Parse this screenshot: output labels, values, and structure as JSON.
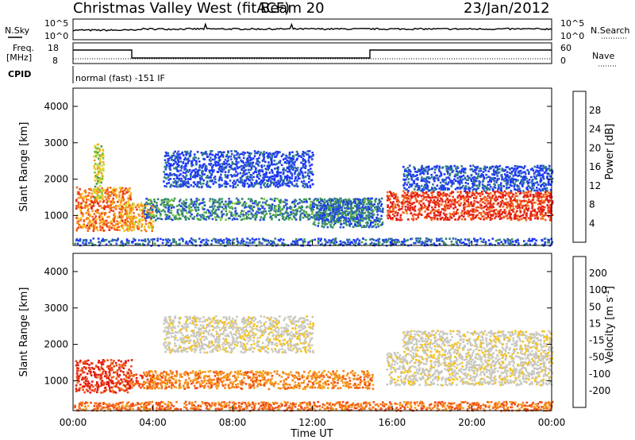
{
  "header": {
    "station": "Christmas Valley West (fitACF)",
    "beam": "Beam 20",
    "date": "23/Jan/2012"
  },
  "params": {
    "nsky_label": "N.Sky",
    "nsearch_label": "N.Search",
    "nsky_ticks": [
      "10^5",
      "10^0"
    ],
    "nsearch_ticks": [
      "10^5",
      "10^0"
    ],
    "freq_label_1": "Freq.",
    "freq_label_2": "[MHz]",
    "freq_ticks": [
      "18",
      "8"
    ],
    "nave_label": "Nave",
    "nave_ticks": [
      "60",
      "0"
    ],
    "cpid_label": "CPID",
    "cpid_text": "normal (fast) -151 IF"
  },
  "chart_data": [
    {
      "type": "heatmap",
      "panel": "power",
      "ylabel": "Slant Range [km]",
      "xlabel": "",
      "ylim": [
        180,
        4500
      ],
      "yticks": [
        1000,
        2000,
        3000,
        4000
      ],
      "colorbar": {
        "title": "Power [dB]",
        "range": [
          0,
          32
        ],
        "ticks": [
          4,
          8,
          12,
          16,
          20,
          24,
          28
        ],
        "colors": [
          "#1a34ff",
          "#2a4fd8",
          "#2e7a86",
          "#3f9a4e",
          "#72c23a",
          "#c8d93a",
          "#f4c21a",
          "#f5961b",
          "#f36a1a",
          "#ee3b17",
          "#e21b12"
        ]
      },
      "scatter_bands": [
        {
          "t0": 0.1,
          "t1": 2.9,
          "r0": 600,
          "r1": 1800,
          "level": 0.75
        },
        {
          "t0": 1.0,
          "t1": 1.5,
          "r0": 1500,
          "r1": 3000,
          "level": 0.5
        },
        {
          "t0": 2.6,
          "t1": 4.0,
          "r0": 600,
          "r1": 1400,
          "level": 0.65
        },
        {
          "t0": 3.5,
          "t1": 15.0,
          "r0": 900,
          "r1": 1500,
          "level": 0.25
        },
        {
          "t0": 4.5,
          "t1": 12.0,
          "r0": 1800,
          "r1": 2800,
          "level": 0.08
        },
        {
          "t0": 12.0,
          "t1": 15.5,
          "r0": 700,
          "r1": 1500,
          "level": 0.2
        },
        {
          "t0": 15.7,
          "t1": 24.0,
          "r0": 900,
          "r1": 1700,
          "level": 0.9
        },
        {
          "t0": 16.5,
          "t1": 24.0,
          "r0": 1700,
          "r1": 2400,
          "level": 0.1
        },
        {
          "t0": 0.0,
          "t1": 24.0,
          "r0": 200,
          "r1": 400,
          "level": 0.15
        }
      ]
    },
    {
      "type": "heatmap",
      "panel": "velocity",
      "ylabel": "Slant Range [km]",
      "xlabel": "Time UT",
      "ylim": [
        180,
        4500
      ],
      "yticks": [
        1000,
        2000,
        3000,
        4000
      ],
      "xticks": [
        "00:00",
        "04:00",
        "08:00",
        "12:00",
        "16:00",
        "20:00",
        "00:00"
      ],
      "xlim": [
        0,
        24
      ],
      "colorbar": {
        "title": "Velocity [m s^-1]",
        "range": [
          -250,
          250
        ],
        "ticks": [
          "200",
          "100",
          "50",
          "15",
          "-15",
          "-50",
          "-100",
          "-200"
        ],
        "colors": [
          "#e21b12",
          "#ee4a17",
          "#f57b1a",
          "#f5a21b",
          "#f6c21a",
          "#c8c8c0",
          "#c8c8c0",
          "#7cc23a",
          "#3f9a4e",
          "#2e7a86",
          "#2a4fd8"
        ]
      },
      "scatter_bands": [
        {
          "t0": 0.1,
          "t1": 2.9,
          "r0": 700,
          "r1": 1600,
          "level": -0.8
        },
        {
          "t0": 2.6,
          "t1": 4.2,
          "r0": 800,
          "r1": 1200,
          "level": -0.7
        },
        {
          "t0": 3.5,
          "t1": 15.0,
          "r0": 800,
          "r1": 1300,
          "level": -0.5
        },
        {
          "t0": 4.5,
          "t1": 12.0,
          "r0": 1800,
          "r1": 2800,
          "level": 0.0
        },
        {
          "t0": 15.7,
          "t1": 24.0,
          "r0": 900,
          "r1": 1800,
          "level": 0.0
        },
        {
          "t0": 16.5,
          "t1": 24.0,
          "r0": 1800,
          "r1": 2400,
          "level": 0.0
        },
        {
          "t0": 0.0,
          "t1": 24.0,
          "r0": 200,
          "r1": 450,
          "level": -0.6
        }
      ]
    }
  ]
}
